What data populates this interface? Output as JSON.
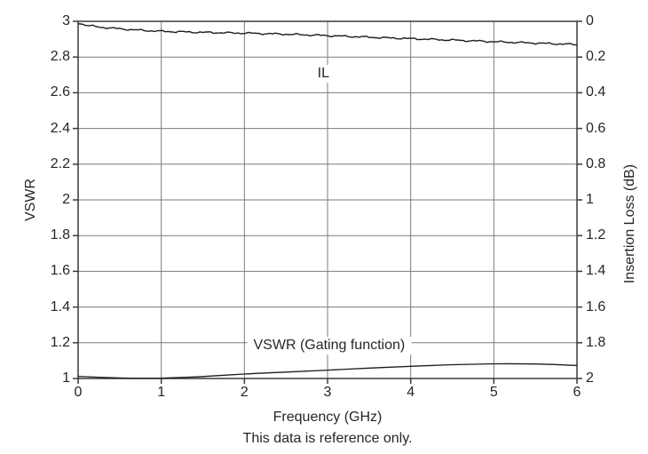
{
  "chart_data": {
    "type": "line",
    "title": "",
    "xlabel": "Frequency (GHz)",
    "ylabel_left": "VSWR",
    "ylabel_right": "Insertion Loss (dB)",
    "caption": "This data is reference only.",
    "xlim": [
      0,
      6
    ],
    "x_ticks": [
      0,
      1,
      2,
      3,
      4,
      5,
      6
    ],
    "left_axis": {
      "label": "VSWR",
      "lim": [
        1,
        3
      ],
      "ticks": [
        3,
        2.8,
        2.6,
        2.4,
        2.2,
        2,
        1.8,
        1.6,
        1.4,
        1.2,
        1
      ]
    },
    "right_axis": {
      "label": "Insertion Loss (dB)",
      "lim": [
        0,
        2
      ],
      "inverted_down": true,
      "ticks": [
        0,
        0.2,
        0.4,
        0.6,
        0.8,
        1,
        1.2,
        1.4,
        1.6,
        1.8,
        2
      ]
    },
    "grid": true,
    "legend_position": "inline-annotations",
    "series": [
      {
        "name": "IL",
        "axis": "right",
        "style": "noisy",
        "noise_amplitude": 0.006,
        "x": [
          0,
          0.1,
          0.25,
          0.5,
          0.75,
          1,
          1.5,
          2,
          2.5,
          3,
          3.5,
          4,
          4.5,
          5,
          5.5,
          6
        ],
        "y": [
          0.008,
          0.022,
          0.032,
          0.042,
          0.05,
          0.056,
          0.062,
          0.066,
          0.072,
          0.08,
          0.089,
          0.097,
          0.105,
          0.114,
          0.122,
          0.13
        ]
      },
      {
        "name": "VSWR (Gating function)",
        "axis": "left",
        "style": "smooth",
        "x": [
          0,
          0.25,
          0.5,
          0.75,
          1,
          1.25,
          1.5,
          2,
          2.5,
          3,
          3.5,
          4,
          4.5,
          5,
          5.5,
          6
        ],
        "y": [
          1.012,
          1.007,
          1.003,
          1.001,
          1.002,
          1.006,
          1.011,
          1.025,
          1.036,
          1.047,
          1.058,
          1.068,
          1.077,
          1.082,
          1.081,
          1.073
        ]
      }
    ],
    "annotations": [
      {
        "text": "IL",
        "series": "IL",
        "x": 2.95,
        "axis": "right",
        "y": 0.295
      },
      {
        "text": "VSWR (Gating function)",
        "series": "VSWR (Gating function)",
        "x": 3.02,
        "axis": "left",
        "y": 1.185
      }
    ]
  },
  "colors": {
    "background": "#ffffff",
    "curve": "#1c1c1c",
    "grid": "#7c7c7c",
    "frame": "#3a3a3a",
    "text": "#262626"
  }
}
